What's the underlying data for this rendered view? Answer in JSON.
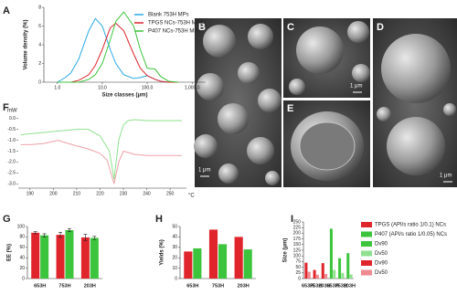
{
  "chart_data": [
    {
      "type": "line",
      "panel": "A",
      "xlabel": "Size classes (μm)",
      "ylabel": "Volume density (%)",
      "xscale": "log",
      "x": [
        1,
        1.5,
        2,
        3,
        5,
        7,
        10,
        15,
        20,
        30,
        50,
        70,
        100,
        150,
        200,
        300,
        500
      ],
      "xlim": [
        0.5,
        2000
      ],
      "xticks": [
        {
          "value": 1,
          "label": "1.0"
        },
        {
          "value": 10,
          "label": "10.0"
        },
        {
          "value": 100,
          "label": "100.0"
        },
        {
          "value": 1000,
          "label": "1,000.0"
        }
      ],
      "ylim": [
        0,
        8
      ],
      "yticks": [
        0,
        2,
        4,
        6,
        8
      ],
      "legend": "upper right",
      "series": [
        {
          "name": "Blank 753H MPs",
          "color": "#29a8e0",
          "values": [
            0,
            0.5,
            1.0,
            2.5,
            5.5,
            6.8,
            6.0,
            3.5,
            2.0,
            0.8,
            0.4,
            0.5,
            0.7,
            0.3,
            0.1,
            0,
            0
          ]
        },
        {
          "name": "TPGS NCs-753H MPs",
          "color": "#e0242c",
          "values": [
            0,
            0,
            0,
            0.2,
            0.8,
            1.8,
            3.5,
            5.8,
            6.3,
            5.5,
            3.0,
            1.5,
            0.7,
            0.3,
            0.1,
            0,
            0
          ]
        },
        {
          "name": "P407 NCs-753H MPs",
          "color": "#3cc43c",
          "values": [
            0,
            0,
            0,
            0,
            0.3,
            0.8,
            2.0,
            4.5,
            6.5,
            7.5,
            6.0,
            3.5,
            1.5,
            1.4,
            0.6,
            0.1,
            0
          ]
        }
      ]
    },
    {
      "type": "line",
      "panel": "F",
      "y_unit": "mW",
      "x_unit": "°C",
      "xlim": [
        185,
        257
      ],
      "xticks": [
        190,
        200,
        210,
        220,
        230,
        240,
        250
      ],
      "ylim": [
        -3.2,
        0.2
      ],
      "yticks": [
        {
          "value": 0,
          "label": "0.0"
        },
        -0.5,
        {
          "value": -1,
          "label": "-1.0"
        },
        -1.5,
        {
          "value": -2,
          "label": "-2.0"
        },
        -2.5,
        {
          "value": -3,
          "label": "-3.0"
        }
      ],
      "series": [
        {
          "color": "#8ee08e",
          "x": [
            186,
            190,
            200,
            210,
            215,
            220,
            224,
            226,
            228,
            230,
            232,
            235,
            240,
            250,
            255
          ],
          "values": [
            -0.75,
            -0.7,
            -0.6,
            -0.5,
            -0.5,
            -0.8,
            -1.5,
            -2.8,
            -1.0,
            -0.3,
            -0.1,
            -0.05,
            -0.1,
            -0.1,
            -0.1
          ]
        },
        {
          "color": "#f0a0a8",
          "x": [
            186,
            190,
            196,
            202,
            208,
            215,
            220,
            223,
            226,
            228,
            230,
            235,
            240,
            250,
            255
          ],
          "values": [
            -1.2,
            -1.2,
            -1.15,
            -1.0,
            -1.2,
            -1.4,
            -1.6,
            -1.9,
            -3.0,
            -2.0,
            -1.5,
            -1.65,
            -1.7,
            -1.7,
            -1.7
          ]
        }
      ]
    },
    {
      "type": "bar",
      "panel": "G",
      "ylabel": "EE (%)",
      "categories": [
        "653H",
        "753H",
        "203H"
      ],
      "ylim": [
        0,
        100
      ],
      "yticks": [
        0,
        20,
        40,
        60,
        80,
        100
      ],
      "series": [
        {
          "color": "#e0242c",
          "values": [
            88,
            84,
            79
          ],
          "errors": [
            2,
            5,
            6
          ]
        },
        {
          "color": "#3cc43c",
          "values": [
            83,
            93,
            78
          ],
          "errors": [
            3,
            3,
            3
          ]
        }
      ]
    },
    {
      "type": "bar",
      "panel": "H",
      "ylabel": "Yields (%)",
      "categories": [
        "653H",
        "753H",
        "203H"
      ],
      "ylim": [
        0,
        50
      ],
      "yticks": [
        0,
        10,
        20,
        30,
        40,
        50
      ],
      "series": [
        {
          "color": "#e0242c",
          "values": [
            26,
            47,
            40
          ]
        },
        {
          "color": "#3cc43c",
          "values": [
            29,
            33,
            28
          ]
        }
      ]
    },
    {
      "type": "bar",
      "panel": "I",
      "ylabel": "Size (μm)",
      "categories": [
        "653H",
        "753H",
        "203H",
        "653H",
        "753H",
        "203H"
      ],
      "ylim": [
        0,
        250
      ],
      "yticks": [
        0,
        25,
        50,
        75,
        100,
        125,
        150,
        175,
        200,
        225,
        250
      ],
      "legend": "right",
      "legend_groups": [
        {
          "name": "TPGS (API/s ratio 1/0.1) NCs",
          "color": "#e0242c"
        },
        {
          "name": "P407 (API/s ratio 1/0.05) NCs",
          "color": "#3cc43c"
        }
      ],
      "series": [
        {
          "name": "Dv90",
          "color": "#3cc43c",
          "values": [
            null,
            null,
            null,
            220,
            90,
            112
          ]
        },
        {
          "name": "Dv50",
          "color": "#8fe08f",
          "values": [
            null,
            null,
            null,
            38,
            25,
            18
          ]
        },
        {
          "name": "Dv90",
          "color": "#e0242c",
          "values": [
            70,
            38,
            68,
            null,
            null,
            null
          ]
        },
        {
          "name": "Dv50",
          "color": "#f08a90",
          "values": [
            30,
            17,
            20,
            null,
            null,
            null
          ]
        }
      ]
    }
  ],
  "images": [
    {
      "label": "B",
      "scale": "1 μm"
    },
    {
      "label": "C",
      "scale": "1 μm"
    },
    {
      "label": "E"
    },
    {
      "label": "D",
      "scale": "1 μm"
    }
  ]
}
